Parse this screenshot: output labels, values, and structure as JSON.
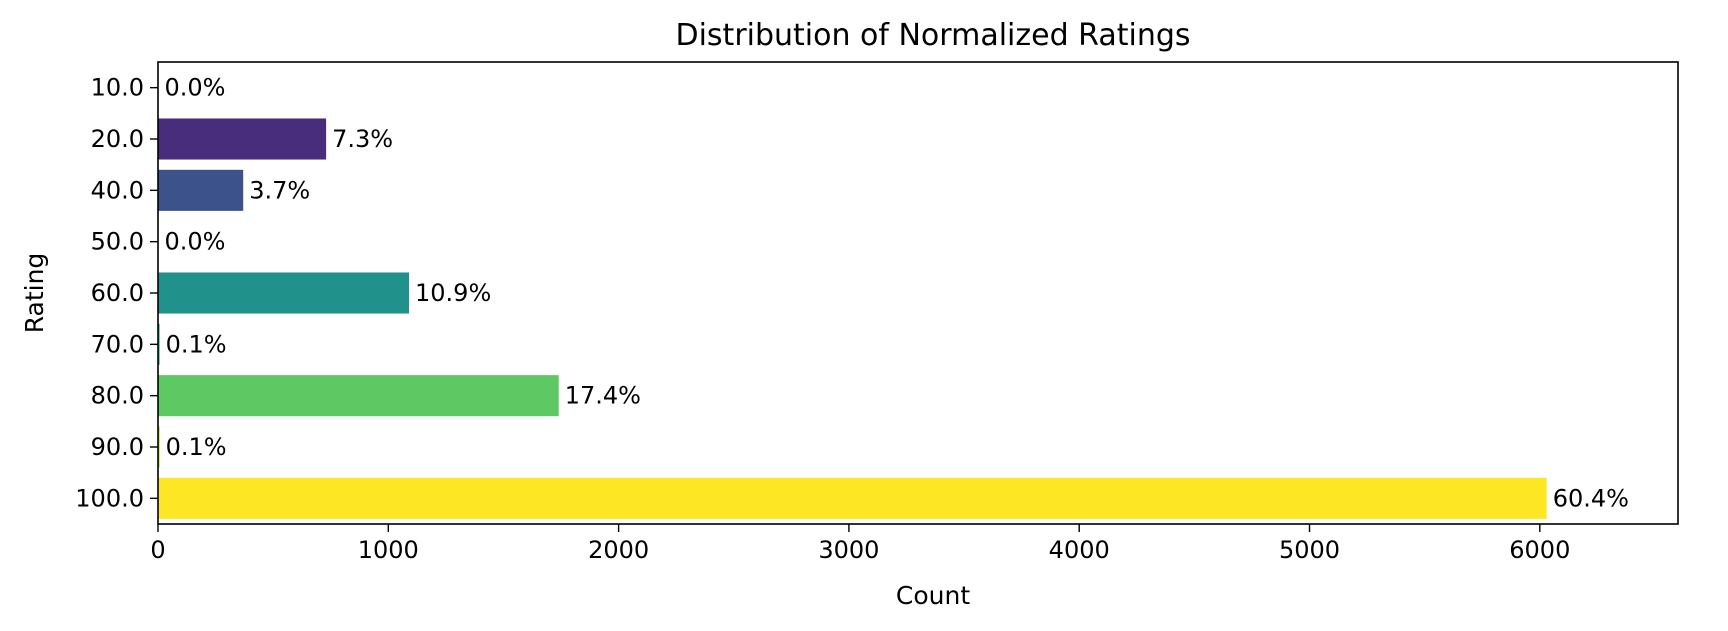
{
  "chart_data": {
    "type": "bar",
    "orientation": "horizontal",
    "title": "Distribution of Normalized Ratings",
    "xlabel": "Count",
    "ylabel": "Rating",
    "xlim": [
      0,
      6600
    ],
    "xticks": [
      0,
      1000,
      2000,
      3000,
      4000,
      5000,
      6000
    ],
    "grid": false,
    "legend": "none",
    "categories": [
      "10.0",
      "20.0",
      "40.0",
      "50.0",
      "60.0",
      "70.0",
      "80.0",
      "90.0",
      "100.0"
    ],
    "values": [
      2,
      730,
      370,
      2,
      1090,
      7,
      1740,
      7,
      6030
    ],
    "data_labels": [
      "0.0%",
      "7.3%",
      "3.7%",
      "0.0%",
      "10.9%",
      "0.1%",
      "17.4%",
      "0.1%",
      "60.4%"
    ],
    "colors": [
      "#440154",
      "#472d7b",
      "#3b528b",
      "#2c728e",
      "#21918c",
      "#28ae80",
      "#5ec962",
      "#addc30",
      "#fde725"
    ]
  }
}
